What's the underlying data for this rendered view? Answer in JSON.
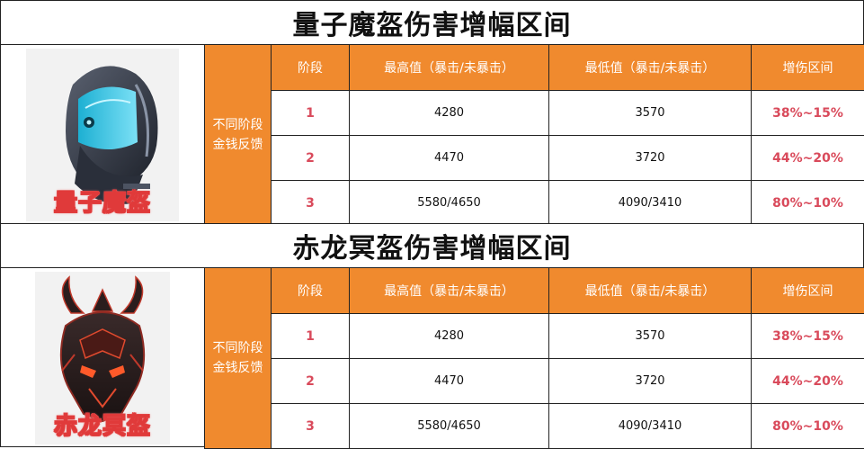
{
  "sections": [
    {
      "title": "量子魔盔伤害增幅区间",
      "helmet_label": "量子魔盔",
      "helmet_icon": "quantum-helmet-icon",
      "side_label_line1": "不同阶段",
      "side_label_line2": "金钱反馈",
      "headers": [
        "阶段",
        "最高值（暴击/未暴击）",
        "最低值（暴击/未暴击）",
        "增伤区间"
      ],
      "rows": [
        {
          "stage": "1",
          "max": "4280",
          "min": "3570",
          "range": "38%~15%"
        },
        {
          "stage": "2",
          "max": "4470",
          "min": "3720",
          "range": "44%~20%"
        },
        {
          "stage": "3",
          "max": "5580/4650",
          "min": "4090/3410",
          "range": "80%~10%"
        }
      ]
    },
    {
      "title": "赤龙冥盔伤害增幅区间",
      "helmet_label": "赤龙冥盔",
      "helmet_icon": "red-dragon-helmet-icon",
      "side_label_line1": "不同阶段",
      "side_label_line2": "金钱反馈",
      "headers": [
        "阶段",
        "最高值（暴击/未暴击）",
        "最低值（暴击/未暴击）",
        "增伤区间"
      ],
      "rows": [
        {
          "stage": "1",
          "max": "4280",
          "min": "3570",
          "range": "38%~15%"
        },
        {
          "stage": "2",
          "max": "4470",
          "min": "3720",
          "range": "44%~20%"
        },
        {
          "stage": "3",
          "max": "5580/4650",
          "min": "4090/3410",
          "range": "80%~10%"
        }
      ]
    }
  ],
  "colors": {
    "accent": "#f08a2e",
    "highlight": "#d94a5b",
    "border": "#222222"
  }
}
